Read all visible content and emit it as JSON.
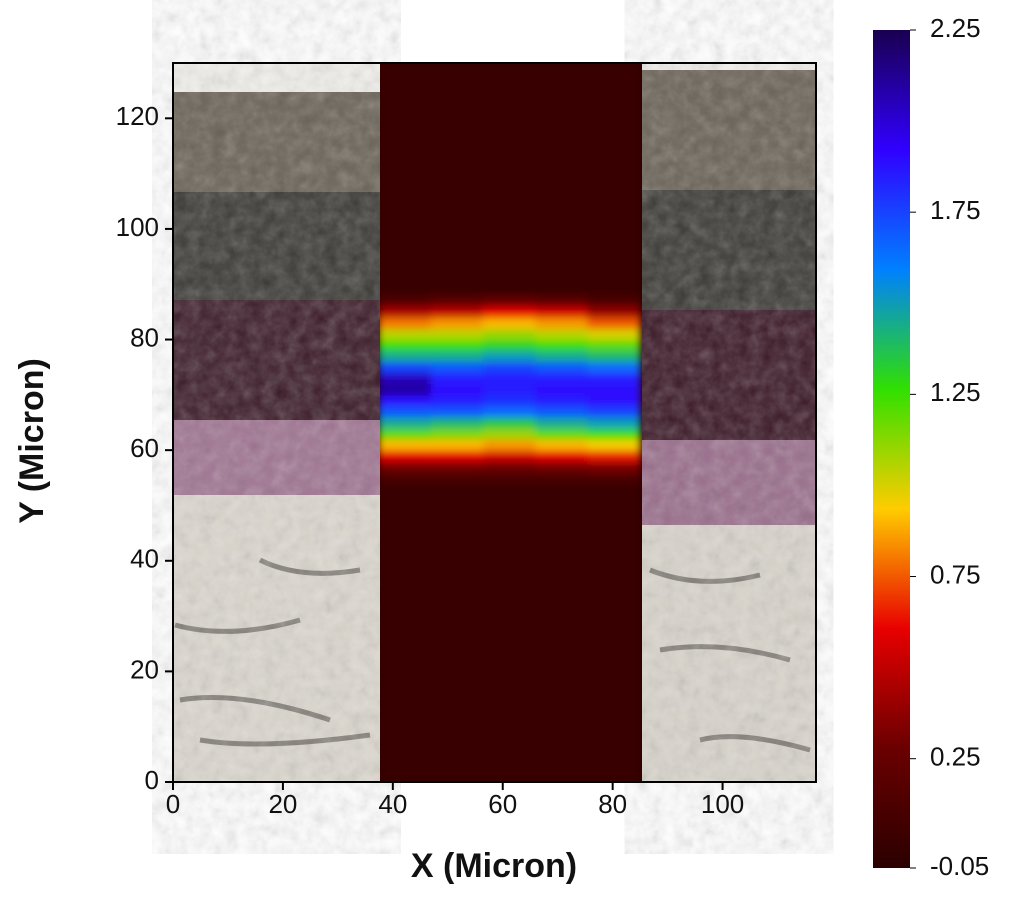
{
  "chart_data": {
    "type": "heatmap",
    "x_label": "X (Micron)",
    "y_label": "Y (Micron)",
    "xlim": [
      0,
      117
    ],
    "ylim": [
      0,
      130
    ],
    "xticks": [
      0,
      20,
      40,
      60,
      80,
      100
    ],
    "yticks": [
      0,
      20,
      40,
      60,
      80,
      100,
      120
    ],
    "x_bins": [
      37.5,
      47,
      56.5,
      66,
      75.5,
      85
    ],
    "y_bins": [
      0,
      54,
      56,
      58,
      60,
      62,
      64,
      66,
      68,
      70,
      72,
      74,
      76,
      78,
      80,
      82,
      84,
      86,
      88,
      130
    ],
    "values": [
      [
        0.02,
        0.02,
        0.02,
        0.02,
        0.02
      ],
      [
        0.1,
        0.1,
        0.1,
        0.1,
        0.1
      ],
      [
        0.3,
        0.3,
        0.28,
        0.3,
        0.32
      ],
      [
        0.6,
        0.6,
        0.55,
        0.6,
        0.65
      ],
      [
        0.9,
        0.9,
        0.85,
        0.9,
        0.95
      ],
      [
        1.2,
        1.15,
        1.1,
        1.2,
        1.25
      ],
      [
        1.45,
        1.4,
        1.35,
        1.45,
        1.5
      ],
      [
        1.7,
        1.7,
        1.65,
        1.7,
        1.75
      ],
      [
        1.9,
        1.85,
        1.8,
        1.85,
        1.9
      ],
      [
        2.1,
        1.9,
        1.85,
        1.9,
        1.9
      ],
      [
        2.05,
        1.85,
        1.85,
        1.85,
        1.85
      ],
      [
        1.75,
        1.7,
        1.75,
        1.7,
        1.65
      ],
      [
        1.45,
        1.45,
        1.5,
        1.45,
        1.4
      ],
      [
        1.25,
        1.25,
        1.3,
        1.25,
        1.2
      ],
      [
        1.05,
        1.05,
        1.1,
        1.05,
        1.0
      ],
      [
        0.8,
        0.85,
        0.9,
        0.85,
        0.75
      ],
      [
        0.45,
        0.5,
        0.6,
        0.55,
        0.4
      ],
      [
        0.15,
        0.2,
        0.25,
        0.2,
        0.12
      ],
      [
        0.02,
        0.02,
        0.02,
        0.02,
        0.02
      ]
    ],
    "clim": [
      -0.05,
      2.25
    ],
    "cticks": [
      -0.05,
      0.25,
      0.75,
      1.25,
      1.75,
      2.25
    ],
    "colormap": [
      "#2b0000",
      "#6a0000",
      "#e80000",
      "#ffcc00",
      "#30e000",
      "#0080ff",
      "#3000ff",
      "#1a0050"
    ]
  }
}
